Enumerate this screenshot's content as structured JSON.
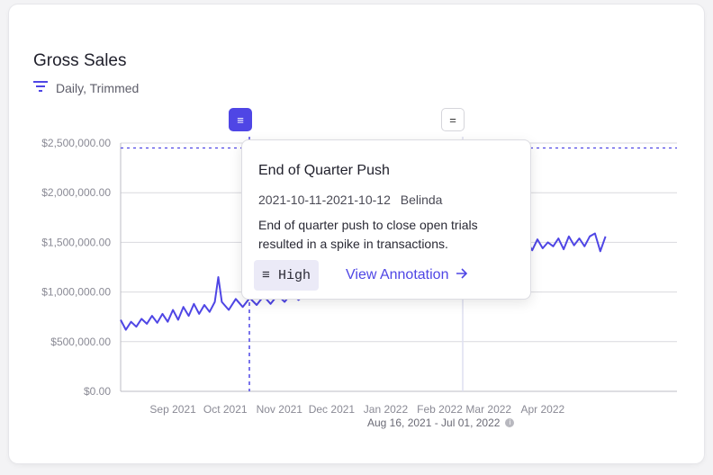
{
  "card": {
    "title": "Gross Sales",
    "subtitle": "Daily, Trimmed",
    "date_range": "Aug 16, 2021 - Jul 01, 2022"
  },
  "annotations": {
    "tooltip": {
      "title": "End of Quarter Push",
      "dates": "2021-10-11-2021-10-12",
      "author": "Belinda",
      "description": "End of quarter push to close open trials resulted in a spike in transactions.",
      "priority": "High",
      "link_label": "View Annotation"
    }
  },
  "colors": {
    "accent": "#4f46e5",
    "line": "#4f46e5",
    "grid": "#d9d9de"
  },
  "chart_data": {
    "type": "line",
    "title": "Gross Sales",
    "x_start": "2021-08-16",
    "x_end": "2022-07-01",
    "ylim": [
      0,
      2500000
    ],
    "y_ticks": [
      "$0.00",
      "$500,000.00",
      "$1,000,000.00",
      "$1,500,000.00",
      "$2,000,000.00",
      "$2,500,000.00"
    ],
    "x_ticks": [
      "Sep 2021",
      "Oct 2021",
      "Nov 2021",
      "Dec 2021",
      "Jan 2022",
      "Feb 2022",
      "Mar 2022",
      "Apr 2022"
    ],
    "threshold": 2450000,
    "grid": true,
    "series": [
      {
        "values": [
          {
            "x": "2021-08-16",
            "y": 720000
          },
          {
            "x": "2021-08-19",
            "y": 620000
          },
          {
            "x": "2021-08-22",
            "y": 700000
          },
          {
            "x": "2021-08-25",
            "y": 650000
          },
          {
            "x": "2021-08-28",
            "y": 730000
          },
          {
            "x": "2021-08-31",
            "y": 680000
          },
          {
            "x": "2021-09-03",
            "y": 760000
          },
          {
            "x": "2021-09-06",
            "y": 690000
          },
          {
            "x": "2021-09-09",
            "y": 780000
          },
          {
            "x": "2021-09-12",
            "y": 700000
          },
          {
            "x": "2021-09-15",
            "y": 820000
          },
          {
            "x": "2021-09-18",
            "y": 720000
          },
          {
            "x": "2021-09-21",
            "y": 850000
          },
          {
            "x": "2021-09-24",
            "y": 760000
          },
          {
            "x": "2021-09-27",
            "y": 880000
          },
          {
            "x": "2021-09-30",
            "y": 780000
          },
          {
            "x": "2021-10-03",
            "y": 870000
          },
          {
            "x": "2021-10-06",
            "y": 800000
          },
          {
            "x": "2021-10-09",
            "y": 900000
          },
          {
            "x": "2021-10-11",
            "y": 1150000
          },
          {
            "x": "2021-10-13",
            "y": 900000
          },
          {
            "x": "2021-10-17",
            "y": 820000
          },
          {
            "x": "2021-10-21",
            "y": 930000
          },
          {
            "x": "2021-10-25",
            "y": 850000
          },
          {
            "x": "2021-10-29",
            "y": 940000
          },
          {
            "x": "2021-11-02",
            "y": 870000
          },
          {
            "x": "2021-11-06",
            "y": 960000
          },
          {
            "x": "2021-11-10",
            "y": 880000
          },
          {
            "x": "2021-11-14",
            "y": 970000
          },
          {
            "x": "2021-11-18",
            "y": 900000
          },
          {
            "x": "2021-11-22",
            "y": 990000
          },
          {
            "x": "2021-11-26",
            "y": 920000
          },
          {
            "x": "2021-11-30",
            "y": 980000
          },
          {
            "x": "2022-01-26",
            "y": 1170000
          },
          {
            "x": "2022-01-29",
            "y": 1080000
          },
          {
            "x": "2022-02-02",
            "y": 1200000
          },
          {
            "x": "2022-02-06",
            "y": 1110000
          },
          {
            "x": "2022-02-10",
            "y": 1250000
          },
          {
            "x": "2022-02-14",
            "y": 1150000
          },
          {
            "x": "2022-02-17",
            "y": 1380000
          },
          {
            "x": "2022-02-20",
            "y": 1260000
          },
          {
            "x": "2022-02-23",
            "y": 1400000
          },
          {
            "x": "2022-02-26",
            "y": 1300000
          },
          {
            "x": "2022-03-01",
            "y": 1420000
          },
          {
            "x": "2022-03-03",
            "y": 1330000
          },
          {
            "x": "2022-03-05",
            "y": 1640000
          },
          {
            "x": "2022-03-07",
            "y": 1360000
          },
          {
            "x": "2022-03-10",
            "y": 1320000
          },
          {
            "x": "2022-03-13",
            "y": 1420000
          },
          {
            "x": "2022-03-16",
            "y": 1350000
          },
          {
            "x": "2022-03-19",
            "y": 1470000
          },
          {
            "x": "2022-03-22",
            "y": 1380000
          },
          {
            "x": "2022-03-25",
            "y": 1490000
          },
          {
            "x": "2022-03-28",
            "y": 1400000
          },
          {
            "x": "2022-03-31",
            "y": 1460000
          },
          {
            "x": "2022-04-03",
            "y": 1390000
          },
          {
            "x": "2022-04-06",
            "y": 1510000
          },
          {
            "x": "2022-04-09",
            "y": 1420000
          },
          {
            "x": "2022-04-12",
            "y": 1530000
          },
          {
            "x": "2022-04-15",
            "y": 1440000
          },
          {
            "x": "2022-04-18",
            "y": 1500000
          },
          {
            "x": "2022-04-21",
            "y": 1460000
          },
          {
            "x": "2022-04-24",
            "y": 1540000
          },
          {
            "x": "2022-04-27",
            "y": 1430000
          },
          {
            "x": "2022-04-30",
            "y": 1560000
          },
          {
            "x": "2022-05-03",
            "y": 1470000
          },
          {
            "x": "2022-05-06",
            "y": 1540000
          },
          {
            "x": "2022-05-09",
            "y": 1460000
          },
          {
            "x": "2022-05-12",
            "y": 1560000
          },
          {
            "x": "2022-05-15",
            "y": 1590000
          },
          {
            "x": "2022-05-18",
            "y": 1410000
          },
          {
            "x": "2022-05-21",
            "y": 1560000
          }
        ]
      }
    ]
  }
}
